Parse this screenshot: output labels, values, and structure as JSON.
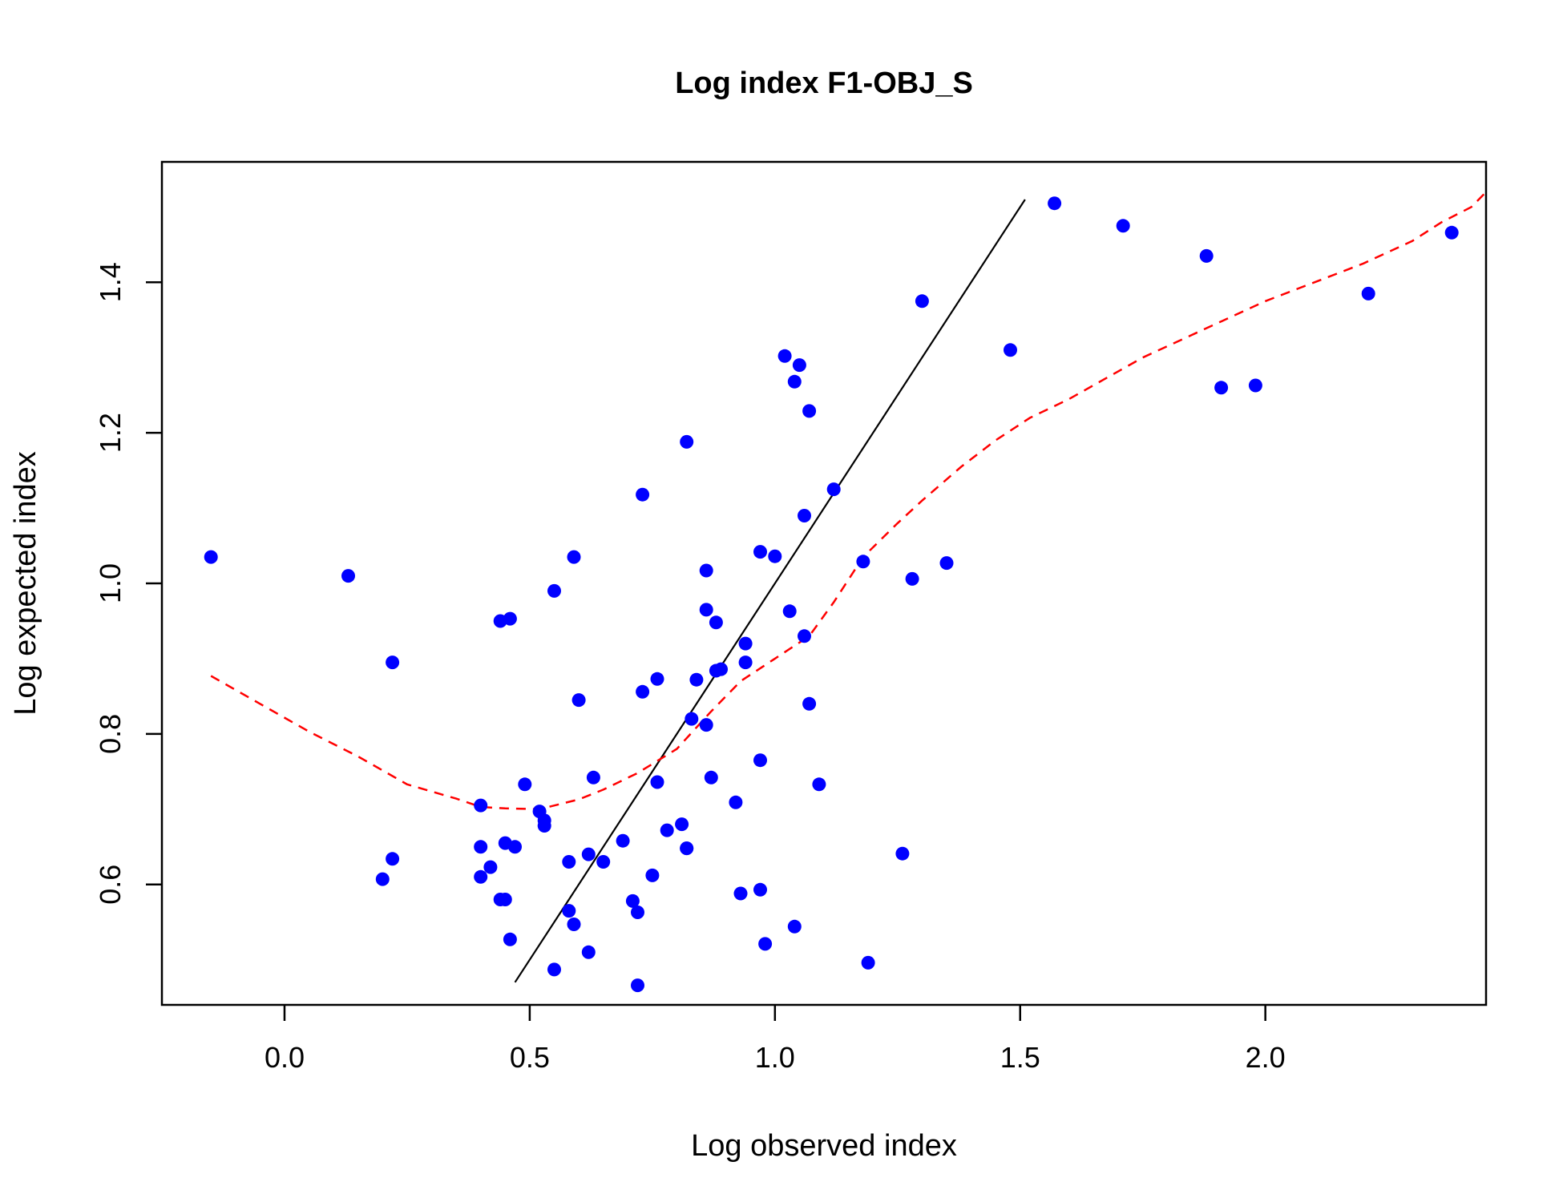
{
  "chart_data": {
    "type": "scatter",
    "title": "Log index F1-OBJ_S",
    "xlabel": "Log observed index",
    "ylabel": "Log expected index",
    "xlim": [
      -0.25,
      2.45
    ],
    "ylim": [
      0.44,
      1.56
    ],
    "x_ticks": [
      0.0,
      0.5,
      1.0,
      1.5,
      2.0
    ],
    "x_tick_labels": [
      "0.0",
      "0.5",
      "1.0",
      "1.5",
      "2.0"
    ],
    "y_ticks": [
      0.6,
      0.8,
      1.0,
      1.2,
      1.4
    ],
    "y_tick_labels": [
      "0.6",
      "0.8",
      "1.0",
      "1.2",
      "1.4"
    ],
    "grid": false,
    "colors": {
      "points": "#0000ff",
      "identity_line": "#000000",
      "smoother": "#ff0000"
    },
    "points": [
      [
        -0.15,
        1.035
      ],
      [
        0.13,
        1.01
      ],
      [
        0.22,
        0.895
      ],
      [
        0.2,
        0.607
      ],
      [
        0.22,
        0.634
      ],
      [
        0.4,
        0.705
      ],
      [
        0.4,
        0.65
      ],
      [
        0.4,
        0.61
      ],
      [
        0.42,
        0.623
      ],
      [
        0.44,
        0.95
      ],
      [
        0.46,
        0.953
      ],
      [
        0.44,
        0.58
      ],
      [
        0.45,
        0.58
      ],
      [
        0.45,
        0.655
      ],
      [
        0.47,
        0.65
      ],
      [
        0.46,
        0.527
      ],
      [
        0.49,
        0.733
      ],
      [
        0.52,
        0.697
      ],
      [
        0.53,
        0.678
      ],
      [
        0.53,
        0.685
      ],
      [
        0.55,
        0.99
      ],
      [
        0.55,
        0.487
      ],
      [
        0.58,
        0.63
      ],
      [
        0.59,
        1.035
      ],
      [
        0.58,
        0.565
      ],
      [
        0.59,
        0.547
      ],
      [
        0.6,
        0.845
      ],
      [
        0.62,
        0.64
      ],
      [
        0.62,
        0.51
      ],
      [
        0.63,
        0.742
      ],
      [
        0.65,
        0.63
      ],
      [
        0.69,
        0.658
      ],
      [
        0.71,
        0.578
      ],
      [
        0.72,
        0.563
      ],
      [
        0.72,
        0.466
      ],
      [
        0.73,
        1.118
      ],
      [
        0.73,
        0.856
      ],
      [
        0.75,
        0.612
      ],
      [
        0.76,
        0.873
      ],
      [
        0.76,
        0.736
      ],
      [
        0.78,
        0.672
      ],
      [
        0.81,
        0.68
      ],
      [
        0.82,
        0.648
      ],
      [
        0.82,
        0.648
      ],
      [
        0.82,
        1.188
      ],
      [
        0.83,
        0.82
      ],
      [
        0.84,
        0.872
      ],
      [
        0.86,
        1.017
      ],
      [
        0.86,
        0.965
      ],
      [
        0.86,
        0.812
      ],
      [
        0.87,
        0.742
      ],
      [
        0.88,
        0.948
      ],
      [
        0.88,
        0.884
      ],
      [
        0.89,
        0.886
      ],
      [
        0.92,
        0.709
      ],
      [
        0.93,
        0.588
      ],
      [
        0.94,
        0.895
      ],
      [
        0.94,
        0.92
      ],
      [
        0.97,
        0.765
      ],
      [
        0.97,
        0.593
      ],
      [
        0.97,
        1.042
      ],
      [
        0.98,
        0.521
      ],
      [
        1.0,
        1.036
      ],
      [
        1.02,
        1.302
      ],
      [
        1.03,
        0.963
      ],
      [
        1.04,
        0.544
      ],
      [
        1.04,
        1.268
      ],
      [
        1.05,
        1.29
      ],
      [
        1.06,
        1.09
      ],
      [
        1.06,
        0.93
      ],
      [
        1.07,
        1.229
      ],
      [
        1.07,
        0.84
      ],
      [
        1.09,
        0.733
      ],
      [
        1.12,
        1.125
      ],
      [
        1.18,
        1.029
      ],
      [
        1.19,
        0.496
      ],
      [
        1.26,
        0.641
      ],
      [
        1.28,
        1.006
      ],
      [
        1.3,
        1.375
      ],
      [
        1.35,
        1.027
      ],
      [
        1.48,
        1.31
      ],
      [
        1.57,
        1.505
      ],
      [
        1.71,
        1.475
      ],
      [
        1.88,
        1.435
      ],
      [
        1.91,
        1.26
      ],
      [
        1.98,
        1.263
      ],
      [
        2.21,
        1.385
      ],
      [
        2.38,
        1.466
      ]
    ],
    "identity_line": [
      [
        0.47,
        0.47
      ],
      [
        1.51,
        1.51
      ]
    ],
    "smoother": [
      [
        -0.15,
        0.877
      ],
      [
        -0.05,
        0.84
      ],
      [
        0.05,
        0.803
      ],
      [
        0.15,
        0.77
      ],
      [
        0.25,
        0.733
      ],
      [
        0.35,
        0.714
      ],
      [
        0.4,
        0.703
      ],
      [
        0.45,
        0.701
      ],
      [
        0.52,
        0.7
      ],
      [
        0.6,
        0.713
      ],
      [
        0.65,
        0.726
      ],
      [
        0.72,
        0.748
      ],
      [
        0.8,
        0.78
      ],
      [
        0.87,
        0.83
      ],
      [
        0.93,
        0.87
      ],
      [
        1.0,
        0.9
      ],
      [
        1.07,
        0.93
      ],
      [
        1.12,
        0.975
      ],
      [
        1.18,
        1.035
      ],
      [
        1.25,
        1.08
      ],
      [
        1.3,
        1.11
      ],
      [
        1.38,
        1.155
      ],
      [
        1.45,
        1.19
      ],
      [
        1.52,
        1.22
      ],
      [
        1.6,
        1.245
      ],
      [
        1.75,
        1.3
      ],
      [
        1.85,
        1.33
      ],
      [
        2.0,
        1.375
      ],
      [
        2.1,
        1.4
      ],
      [
        2.2,
        1.425
      ],
      [
        2.3,
        1.455
      ],
      [
        2.36,
        1.48
      ],
      [
        2.42,
        1.5
      ],
      [
        2.45,
        1.52
      ]
    ]
  }
}
